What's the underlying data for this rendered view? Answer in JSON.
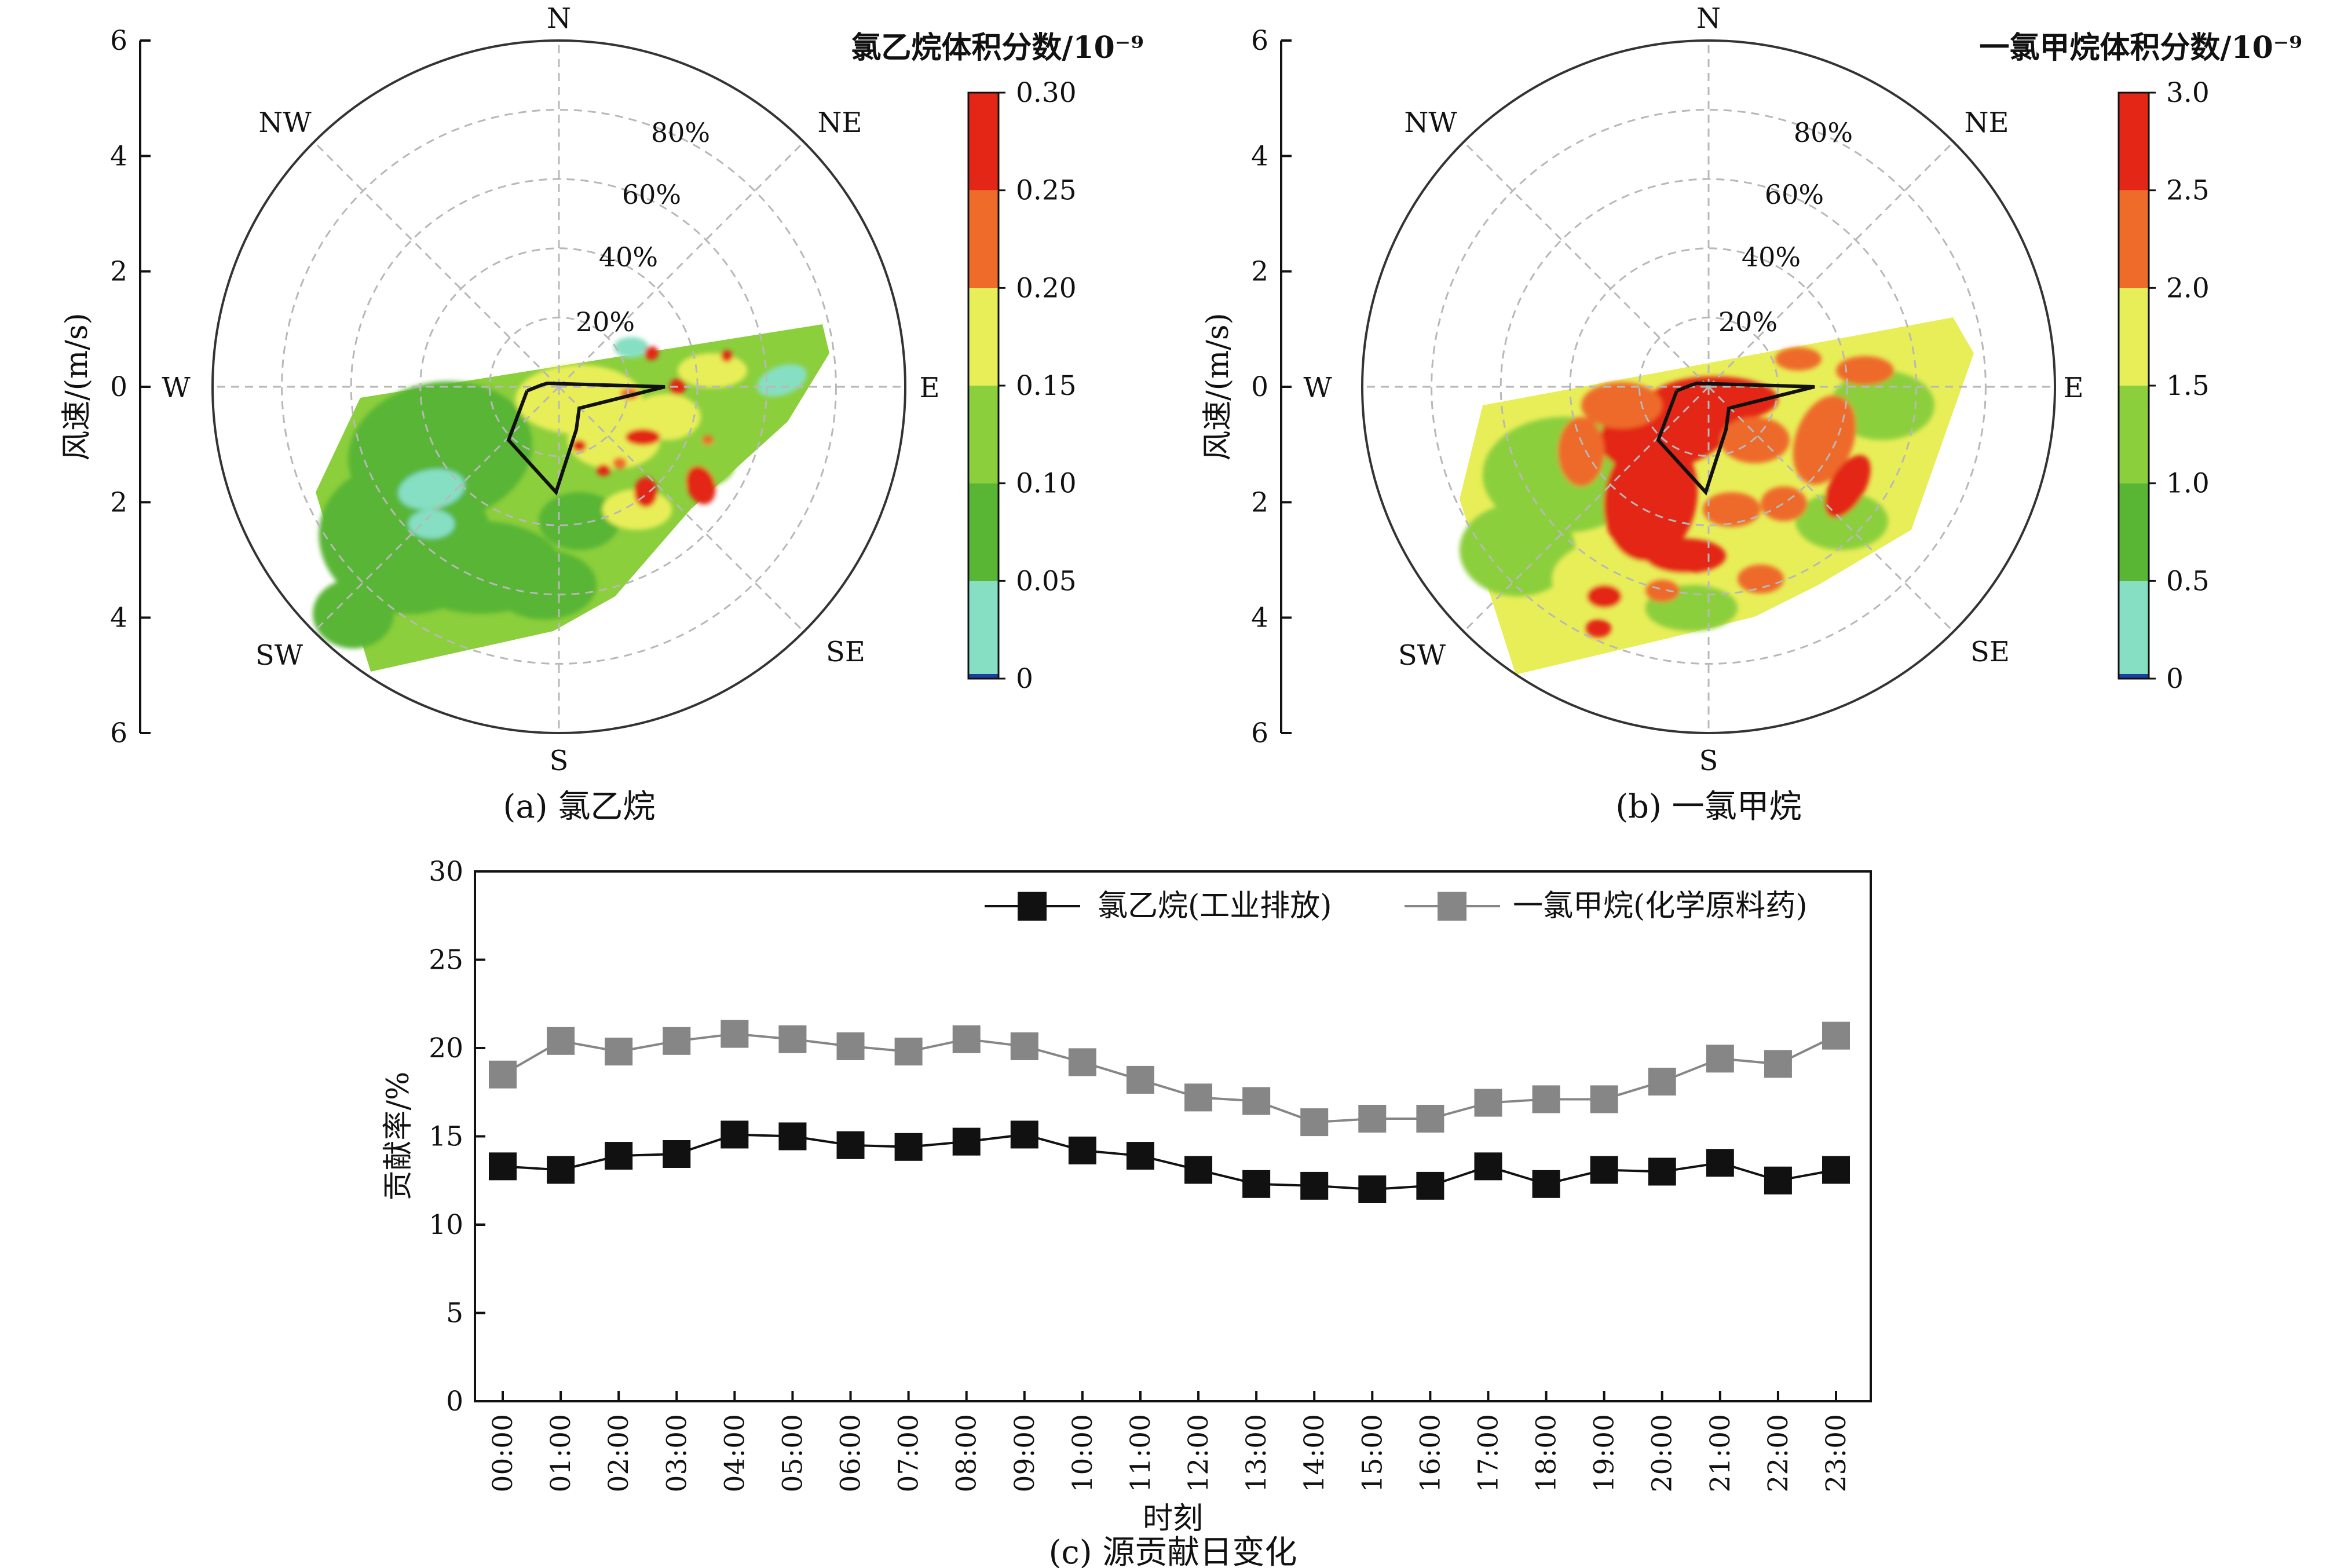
{
  "colors": {
    "levels": [
      "#1a3fa0",
      "#86dfc2",
      "#59b534",
      "#8ccf3c",
      "#e8ee58",
      "#f2a12a",
      "#ee6b2a",
      "#e32616"
    ],
    "series_black": "#111111",
    "series_gray": "#868686"
  },
  "panel_a": {
    "caption": "(a) 氯乙烷",
    "ylabel": "风速/(m/s)",
    "yticks": [
      "6",
      "4",
      "2",
      "0",
      "2",
      "4",
      "6"
    ],
    "directions": [
      "N",
      "NE",
      "E",
      "SE",
      "S",
      "SW",
      "W",
      "NW"
    ],
    "percent_labels": [
      "80%",
      "60%",
      "40%",
      "20%"
    ],
    "colorbar_title": "氯乙烷体积分数/10⁻⁹",
    "colorbar_ticks": [
      "0.30",
      "0.25",
      "0.20",
      "0.15",
      "0.10",
      "0.05",
      "0"
    ]
  },
  "panel_b": {
    "caption": "(b) 一氯甲烷",
    "ylabel": "风速/(m/s)",
    "yticks": [
      "6",
      "4",
      "2",
      "0",
      "2",
      "4",
      "6"
    ],
    "directions": [
      "N",
      "NE",
      "E",
      "SE",
      "S",
      "SW",
      "W",
      "NW"
    ],
    "percent_labels": [
      "80%",
      "60%",
      "40%",
      "20%"
    ],
    "colorbar_title": "一氯甲烷体积分数/10⁻⁹",
    "colorbar_ticks": [
      "3.0",
      "2.5",
      "2.0",
      "1.5",
      "1.0",
      "0.5",
      "0"
    ]
  },
  "panel_c": {
    "caption": "(c) 源贡献日变化"
  },
  "chart_data": [
    {
      "type": "heatmap",
      "subtype": "polar",
      "title": "(a) 氯乙烷",
      "ylabel": "风速/(m/s)",
      "ylim": [
        0,
        6
      ],
      "directions": [
        "N",
        "NE",
        "E",
        "SE",
        "S",
        "SW",
        "W",
        "NW"
      ],
      "colorbar_label": "氯乙烷体积分数/10⁻⁹",
      "color_range": [
        0,
        0.3
      ],
      "color_levels": [
        0,
        0.05,
        0.1,
        0.15,
        0.2,
        0.25,
        0.3
      ],
      "percent_rings": [
        "20%",
        "40%",
        "60%",
        "80%"
      ]
    },
    {
      "type": "heatmap",
      "subtype": "polar",
      "title": "(b) 一氯甲烷",
      "ylabel": "风速/(m/s)",
      "ylim": [
        0,
        6
      ],
      "directions": [
        "N",
        "NE",
        "E",
        "SE",
        "S",
        "SW",
        "W",
        "NW"
      ],
      "colorbar_label": "一氯甲烷体积分数/10⁻⁹",
      "color_range": [
        0,
        3.0
      ],
      "color_levels": [
        0,
        0.5,
        1.0,
        1.5,
        2.0,
        2.5,
        3.0
      ],
      "percent_rings": [
        "20%",
        "40%",
        "60%",
        "80%"
      ]
    },
    {
      "type": "line",
      "title": "(c) 源贡献日变化",
      "xlabel": "时刻",
      "ylabel": "贡献率/%",
      "ylim": [
        0,
        30
      ],
      "yticks": [
        0,
        5,
        10,
        15,
        20,
        25,
        30
      ],
      "legend_position": "top-right",
      "x": [
        "00:00",
        "01:00",
        "02:00",
        "03:00",
        "04:00",
        "05:00",
        "06:00",
        "07:00",
        "08:00",
        "09:00",
        "10:00",
        "11:00",
        "12:00",
        "13:00",
        "14:00",
        "15:00",
        "16:00",
        "17:00",
        "18:00",
        "19:00",
        "20:00",
        "21:00",
        "22:00",
        "23:00"
      ],
      "series": [
        {
          "name": "氯乙烷(工业排放)",
          "color": "#111111",
          "values": [
            13.3,
            13.1,
            13.9,
            14.0,
            15.1,
            15.0,
            14.5,
            14.4,
            14.7,
            15.1,
            14.2,
            13.9,
            13.1,
            12.3,
            12.2,
            12.0,
            12.2,
            13.3,
            12.3,
            13.1,
            13.0,
            13.5,
            12.5,
            13.1
          ]
        },
        {
          "name": "一氯甲烷(化学原料药)",
          "color": "#868686",
          "values": [
            18.5,
            20.4,
            19.8,
            20.4,
            20.8,
            20.5,
            20.1,
            19.8,
            20.5,
            20.1,
            19.2,
            18.2,
            17.2,
            17.0,
            15.8,
            16.0,
            16.0,
            16.9,
            17.1,
            17.1,
            18.1,
            19.4,
            19.1,
            20.7
          ]
        }
      ]
    }
  ]
}
